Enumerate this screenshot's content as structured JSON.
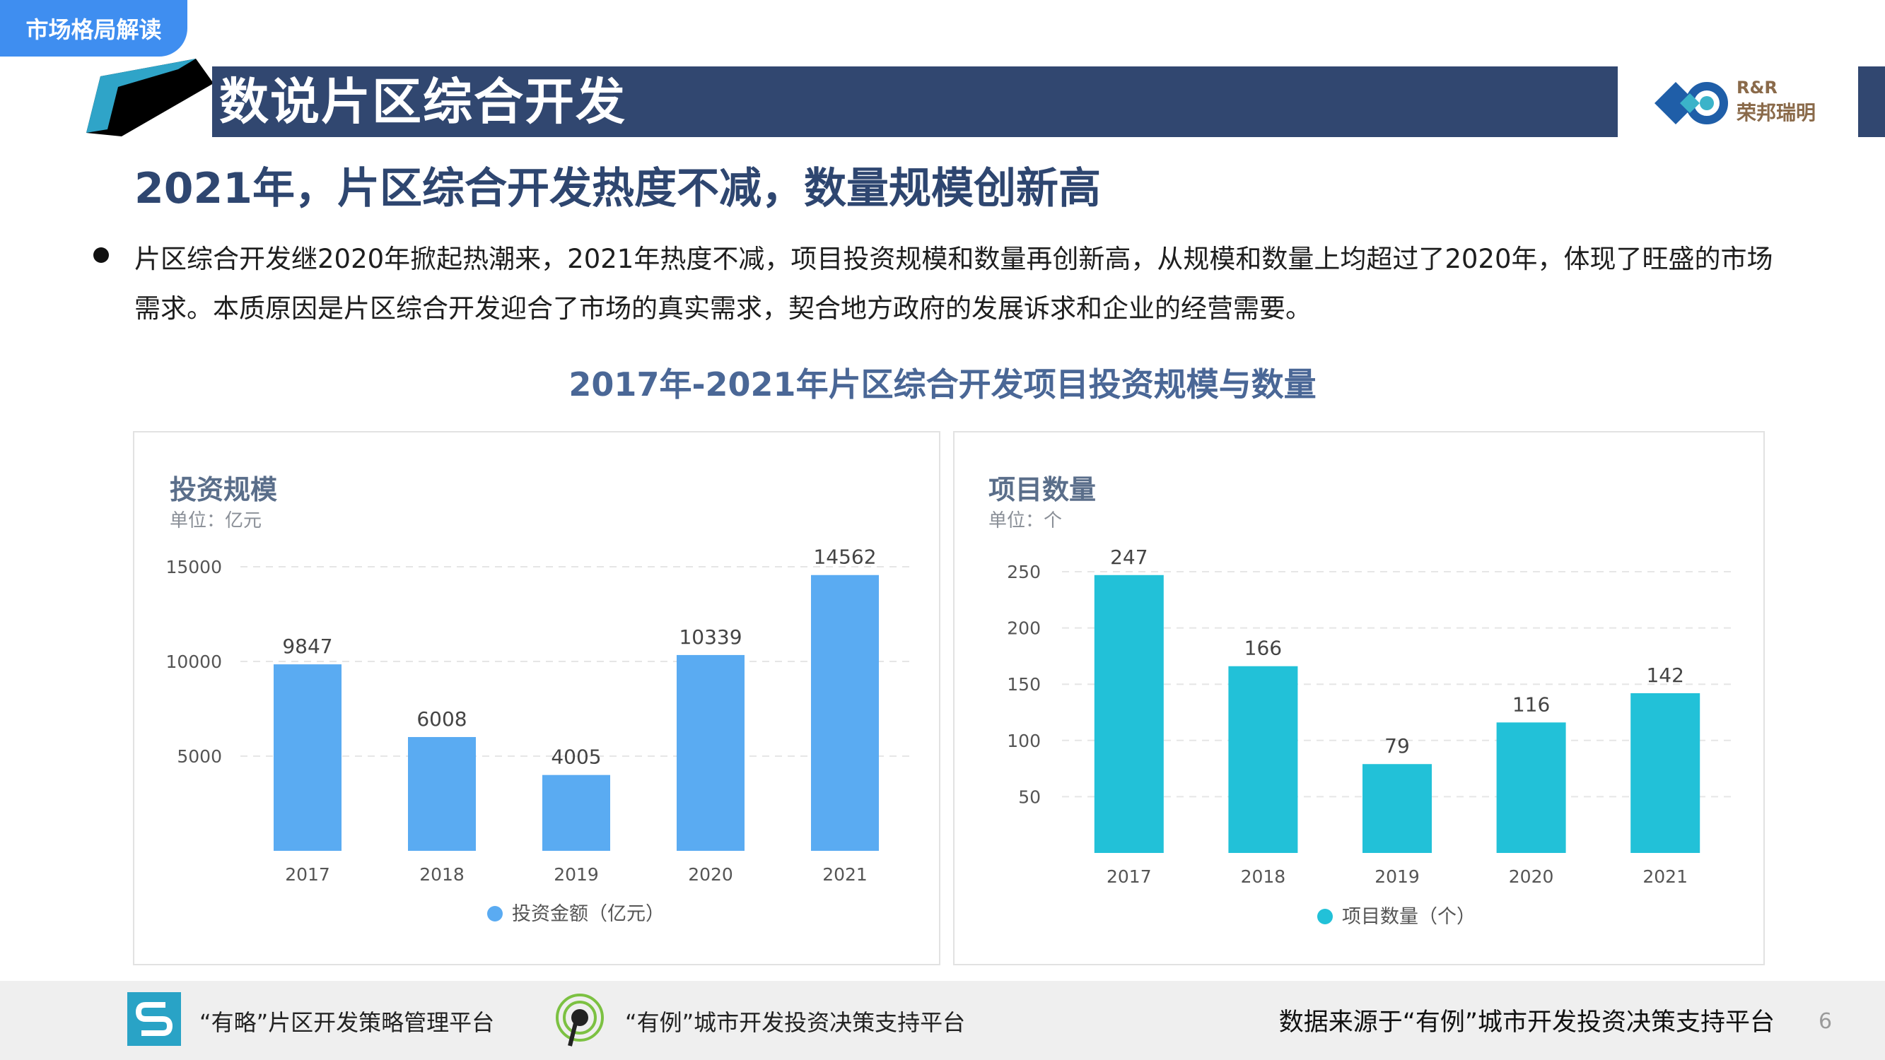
{
  "header": {
    "tag": "市场格局解读",
    "title": "数说片区综合开发",
    "brand_top": "R&R",
    "brand_bottom": "荣邦瑞明"
  },
  "subtitle": "2021年，片区综合开发热度不减，数量规模创新高",
  "paragraph": "片区综合开发继2020年掀起热潮来，2021年热度不减，项目投资规模和数量再创新高，从规模和数量上均超过了2020年，体现了旺盛的市场需求。本质原因是片区综合开发迎合了市场的真实需求，契合地方政府的发展诉求和企业的经营需要。",
  "chart_section_title": "2017年-2021年片区综合开发项目投资规模与数量",
  "chart_data": [
    {
      "type": "bar",
      "title": "投资规模",
      "subtitle": "单位：亿元",
      "categories": [
        "2017",
        "2018",
        "2019",
        "2020",
        "2021"
      ],
      "series": [
        {
          "name": "投资金额（亿元）",
          "values": [
            9847,
            6008,
            4005,
            10339,
            14562
          ]
        }
      ],
      "y_ticks": [
        5000,
        10000,
        15000
      ],
      "ylim": [
        0,
        15000
      ],
      "color": "#5aabf2",
      "grid": "dashed-horizontal",
      "legend": "bottom-center"
    },
    {
      "type": "bar",
      "title": "项目数量",
      "subtitle": "单位：个",
      "categories": [
        "2017",
        "2018",
        "2019",
        "2020",
        "2021"
      ],
      "series": [
        {
          "name": "项目数量（个）",
          "values": [
            247,
            166,
            79,
            116,
            142
          ]
        }
      ],
      "y_ticks": [
        50,
        100,
        150,
        200,
        250
      ],
      "ylim": [
        0,
        250
      ],
      "color": "#22c1d8",
      "grid": "dashed-horizontal",
      "legend": "bottom-center"
    }
  ],
  "footer": {
    "platform1": "“有略”片区开发策略管理平台",
    "platform2": "“有例”城市开发投资决策支持平台",
    "source": "数据来源于“有例”城市开发投资决策支持平台",
    "page_number": "6"
  },
  "colors": {
    "title_bar": "#314770",
    "tag": "#3f8ef0",
    "subtitle_text": "#2e4670",
    "bar_left": "#5aabf2",
    "bar_right": "#22c1d8"
  }
}
